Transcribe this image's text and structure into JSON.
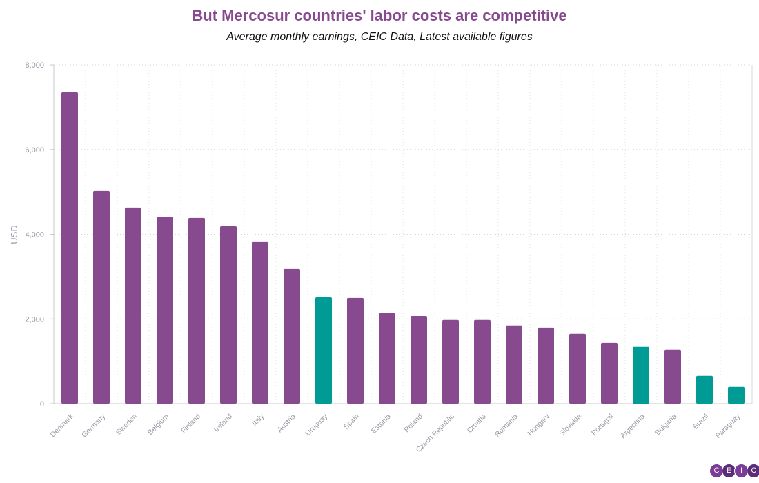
{
  "chart_data": {
    "type": "bar",
    "title": "But Mercosur countries' labor costs are competitive",
    "subtitle": "Average monthly earnings, CEIC Data, Latest available figures",
    "xlabel": "",
    "ylabel": "USD",
    "ylim": [
      0,
      8000
    ],
    "yticks": [
      "0",
      "2,000",
      "4,000",
      "6,000",
      "8,000"
    ],
    "grid": true,
    "categories": [
      "Denmark",
      "Germany",
      "Sweden",
      "Belgium",
      "Finland",
      "Ireland",
      "Italy",
      "Austria",
      "Uruguay",
      "Spain",
      "Estonia",
      "Poland",
      "Czech Republic",
      "Croatia",
      "Romania",
      "Hungary",
      "Slovakia",
      "Portugal",
      "Argentina",
      "Bulgaria",
      "Brazil",
      "Paraguay"
    ],
    "values": [
      7350,
      5020,
      4630,
      4415,
      4385,
      4190,
      3830,
      3180,
      2510,
      2495,
      2135,
      2070,
      1975,
      1975,
      1845,
      1795,
      1650,
      1435,
      1340,
      1275,
      655,
      395
    ],
    "highlight": [
      "Uruguay",
      "Argentina",
      "Brazil",
      "Paraguay"
    ],
    "colors": {
      "default": "#874a8f",
      "highlight": "#009b95"
    }
  },
  "logo": [
    "C",
    "E",
    "I",
    "C"
  ]
}
